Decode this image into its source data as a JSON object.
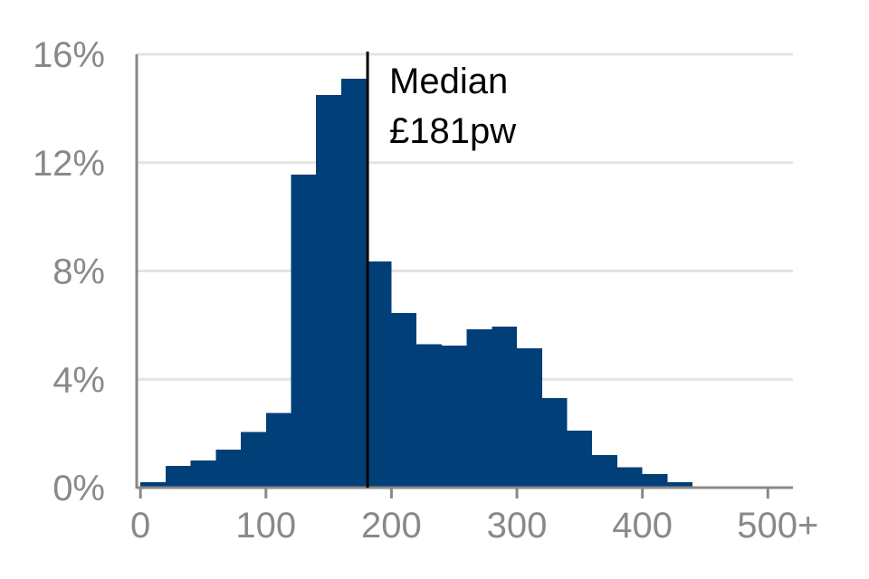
{
  "chart_data": {
    "type": "bar",
    "bin_width": 20,
    "bin_starts": [
      0,
      20,
      40,
      60,
      80,
      100,
      120,
      140,
      160,
      180,
      200,
      220,
      240,
      260,
      280,
      300,
      320,
      340,
      360,
      380,
      400,
      420,
      440,
      460,
      480,
      500
    ],
    "values": [
      0.2,
      0.8,
      1.0,
      1.4,
      2.05,
      2.75,
      11.55,
      14.5,
      15.1,
      8.35,
      6.45,
      5.3,
      5.25,
      5.85,
      5.95,
      5.15,
      3.3,
      2.1,
      1.2,
      0.75,
      0.5,
      0.2,
      0.05,
      0.05,
      0.02,
      0.05
    ],
    "xlim": [
      -3,
      520
    ],
    "ylim": [
      0,
      16
    ],
    "x_ticks": [
      {
        "value": 0,
        "label": "0"
      },
      {
        "value": 100,
        "label": "100"
      },
      {
        "value": 200,
        "label": "200"
      },
      {
        "value": 300,
        "label": "300"
      },
      {
        "value": 400,
        "label": "400"
      },
      {
        "value": 500,
        "label": "500+"
      }
    ],
    "y_ticks": [
      {
        "value": 0,
        "label": "0%"
      },
      {
        "value": 4,
        "label": "4%"
      },
      {
        "value": 8,
        "label": "8%"
      },
      {
        "value": 12,
        "label": "12%"
      },
      {
        "value": 16,
        "label": "16%"
      }
    ],
    "median": {
      "value": 181,
      "label_line1": "Median",
      "label_line2": "£181pw"
    },
    "bar_color": "#003f78",
    "grid": true
  }
}
